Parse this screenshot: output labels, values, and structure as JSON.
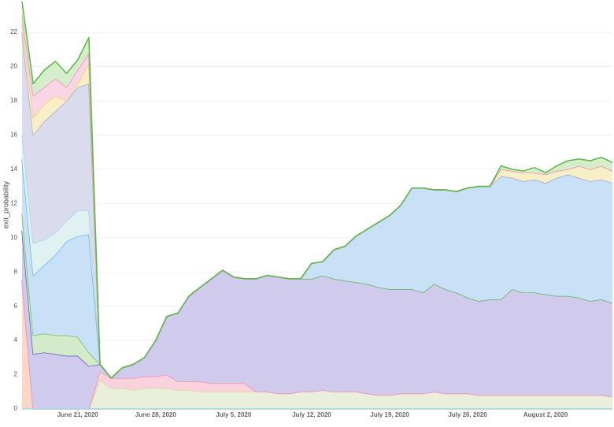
{
  "chart_data": {
    "type": "stacked_area",
    "y_label": "exit_probability",
    "x": [
      "2020-06-16",
      "2020-06-17",
      "2020-06-18",
      "2020-06-19",
      "2020-06-20",
      "2020-06-21",
      "2020-06-22",
      "2020-06-23",
      "2020-06-24",
      "2020-06-25",
      "2020-06-26",
      "2020-06-27",
      "2020-06-28",
      "2020-06-29",
      "2020-06-30",
      "2020-07-01",
      "2020-07-02",
      "2020-07-03",
      "2020-07-04",
      "2020-07-05",
      "2020-07-06",
      "2020-07-07",
      "2020-07-08",
      "2020-07-09",
      "2020-07-10",
      "2020-07-11",
      "2020-07-12",
      "2020-07-13",
      "2020-07-14",
      "2020-07-15",
      "2020-07-16",
      "2020-07-17",
      "2020-07-18",
      "2020-07-19",
      "2020-07-20",
      "2020-07-21",
      "2020-07-22",
      "2020-07-23",
      "2020-07-24",
      "2020-07-25",
      "2020-07-26",
      "2020-07-27",
      "2020-07-28",
      "2020-07-29",
      "2020-07-30",
      "2020-07-31",
      "2020-08-01",
      "2020-08-02",
      "2020-08-03",
      "2020-08-04",
      "2020-08-05",
      "2020-08-06",
      "2020-08-07",
      "2020-08-08"
    ],
    "xlim": [
      "2020-06-16",
      "2020-08-08"
    ],
    "xticks": [
      {
        "value": "2020-06-21",
        "label": "June 21, 2020"
      },
      {
        "value": "2020-06-28",
        "label": "June 28, 2020"
      },
      {
        "value": "2020-07-05",
        "label": "July 5, 2020"
      },
      {
        "value": "2020-07-12",
        "label": "July 12, 2020"
      },
      {
        "value": "2020-07-19",
        "label": "July 19, 2020"
      },
      {
        "value": "2020-07-26",
        "label": "July 26, 2020"
      },
      {
        "value": "2020-08-02",
        "label": "August 2, 2020"
      }
    ],
    "ylim": [
      0,
      23.8
    ],
    "yticks": [
      0,
      2,
      4,
      6,
      8,
      10,
      12,
      14,
      16,
      18,
      20,
      22
    ],
    "grid": true,
    "series": [
      {
        "color": "#f4a27a",
        "fill": "#fbd8c5",
        "values": [
          7.5,
          0,
          0,
          0,
          0,
          0,
          0,
          0,
          0,
          0,
          0,
          0,
          0,
          0,
          0,
          0,
          0,
          0,
          0,
          0,
          0,
          0,
          0,
          0,
          0,
          0,
          0,
          0,
          0,
          0,
          0,
          0,
          0,
          0,
          0,
          0,
          0,
          0,
          0,
          0,
          0,
          0,
          0,
          0,
          0,
          0,
          0,
          0,
          0,
          0,
          0,
          0,
          0,
          0
        ]
      },
      {
        "color": "#d4dc9a",
        "fill": "#e9efda",
        "values": [
          0,
          0,
          0,
          0,
          0,
          0,
          0,
          1.7,
          1.2,
          1.2,
          1.1,
          1.2,
          1.2,
          1.2,
          1.1,
          1.1,
          1.0,
          1.0,
          1.0,
          1.0,
          1.0,
          1.0,
          1.0,
          0.9,
          0.9,
          1.0,
          1.0,
          1.1,
          1.0,
          1.0,
          1.0,
          0.9,
          0.8,
          0.8,
          0.9,
          0.9,
          0.9,
          1.0,
          0.9,
          0.9,
          0.9,
          0.8,
          0.8,
          0.8,
          0.8,
          0.8,
          0.8,
          0.8,
          0.8,
          0.8,
          0.8,
          0.8,
          0.8,
          0.7
        ]
      },
      {
        "color": "#f28cb1",
        "fill": "#f9d2de",
        "values": [
          0,
          0,
          0,
          0,
          0,
          0,
          0,
          0.5,
          0.6,
          0.6,
          0.7,
          0.7,
          0.7,
          0.8,
          0.5,
          0.5,
          0.6,
          0.5,
          0.5,
          0.5,
          0.5,
          0,
          0,
          0,
          0,
          0,
          0,
          0,
          0,
          0,
          0,
          0,
          0,
          0,
          0,
          0,
          0,
          0,
          0,
          0,
          0,
          0,
          0,
          0,
          0,
          0,
          0,
          0,
          0,
          0,
          0,
          0,
          0,
          0
        ]
      },
      {
        "color": "#5b54c4",
        "fill": "#d0caed",
        "values": [
          2.9,
          3.2,
          3.3,
          3.2,
          3.1,
          3.1,
          2.5,
          0.4,
          0,
          0.6,
          0.8,
          1.1,
          2.1,
          3.4,
          4.0,
          5.0,
          5.5,
          6.1,
          6.6,
          6.2,
          6.1,
          6.6,
          6.8,
          6.8,
          6.7,
          6.6,
          6.6,
          6.7,
          6.6,
          6.5,
          6.4,
          6.4,
          6.3,
          6.2,
          6.1,
          6.1,
          5.9,
          6.3,
          6.1,
          5.9,
          5.6,
          5.5,
          5.6,
          5.6,
          6.2,
          6.0,
          6.0,
          5.9,
          5.8,
          5.8,
          5.7,
          5.5,
          5.6,
          5.5
        ]
      },
      {
        "color": "#6cc05a",
        "fill": "#d3ebcb",
        "values": [
          1.0,
          1.1,
          1.1,
          1.1,
          1.2,
          1.1,
          0.8,
          0,
          0,
          0,
          0,
          0,
          0,
          0,
          0,
          0,
          0,
          0,
          0,
          0,
          0,
          0,
          0,
          0,
          0,
          0,
          0,
          0,
          0,
          0,
          0,
          0,
          0,
          0,
          0,
          0,
          0,
          0,
          0,
          0,
          0,
          0,
          0,
          0,
          0,
          0,
          0,
          0,
          0,
          0,
          0,
          0,
          0,
          0
        ]
      },
      {
        "color": "#6fb2e8",
        "fill": "#c9e1f6",
        "values": [
          3.2,
          3.5,
          4.0,
          4.7,
          5.5,
          5.9,
          6.9,
          0,
          0,
          0,
          0,
          0,
          0,
          0,
          0,
          0,
          0,
          0,
          0,
          0,
          0,
          0,
          0,
          0,
          0,
          0,
          0.9,
          0.8,
          1.7,
          2.0,
          2.7,
          3.2,
          3.8,
          4.3,
          4.9,
          5.9,
          6.1,
          5.5,
          5.8,
          5.9,
          6.4,
          6.7,
          6.6,
          7.2,
          6.5,
          6.5,
          6.6,
          6.5,
          6.9,
          7.1,
          7.0,
          7.0,
          7.0,
          7.0
        ]
      },
      {
        "color": "#9fd6e8",
        "fill": "#dff1f0",
        "values": [
          1.4,
          1.9,
          1.5,
          1.3,
          1.2,
          1.5,
          1.4,
          0,
          0,
          0,
          0,
          0,
          0,
          0,
          0,
          0,
          0,
          0,
          0,
          0,
          0,
          0,
          0,
          0,
          0,
          0,
          0,
          0,
          0,
          0,
          0,
          0,
          0,
          0,
          0,
          0,
          0,
          0,
          0,
          0,
          0,
          0,
          0,
          0,
          0,
          0,
          0,
          0,
          0,
          0,
          0,
          0,
          0,
          0
        ]
      },
      {
        "color": "#a9a9d6",
        "fill": "#dadbec",
        "values": [
          6.0,
          6.3,
          6.9,
          7.1,
          7.0,
          7.2,
          7.4,
          0,
          0,
          0,
          0,
          0,
          0,
          0,
          0,
          0,
          0,
          0,
          0,
          0,
          0,
          0,
          0,
          0,
          0,
          0,
          0,
          0,
          0,
          0,
          0,
          0,
          0,
          0,
          0,
          0,
          0,
          0,
          0,
          0,
          0,
          0,
          0,
          0,
          0,
          0,
          0,
          0,
          0,
          0,
          0,
          0,
          0,
          0
        ]
      },
      {
        "color": "#ecd26a",
        "fill": "#f8efc6",
        "values": [
          0.5,
          1.0,
          1.0,
          0.9,
          0,
          0.2,
          1.2,
          0,
          0,
          0,
          0,
          0,
          0,
          0,
          0,
          0,
          0,
          0,
          0,
          0,
          0,
          0,
          0,
          0,
          0,
          0,
          0,
          0,
          0,
          0,
          0,
          0,
          0,
          0,
          0,
          0,
          0,
          0,
          0,
          0,
          0,
          0,
          0,
          0.4,
          0.4,
          0.5,
          0.4,
          0.5,
          0.4,
          0.3,
          0.7,
          0.7,
          0.8,
          0.7
        ]
      },
      {
        "color": "#f08bb8",
        "fill": "#f9d5e5",
        "values": [
          0.5,
          1.3,
          1.0,
          1.0,
          0.8,
          0.8,
          0.6,
          0,
          0,
          0,
          0,
          0,
          0,
          0,
          0,
          0,
          0,
          0,
          0,
          0,
          0,
          0,
          0,
          0,
          0,
          0,
          0,
          0,
          0,
          0,
          0,
          0,
          0,
          0,
          0,
          0,
          0,
          0,
          0,
          0,
          0,
          0,
          0,
          0,
          0,
          0,
          0,
          0,
          0,
          0,
          0,
          0,
          0,
          0
        ]
      },
      {
        "color": "#5ab848",
        "fill": "#d5edca",
        "values": [
          0.8,
          0.7,
          1.0,
          1.0,
          0.8,
          0.6,
          0.9,
          0,
          0,
          0,
          0,
          0,
          0,
          0,
          0,
          0,
          0,
          0,
          0,
          0,
          0,
          0,
          0,
          0,
          0,
          0,
          0,
          0,
          0,
          0,
          0,
          0,
          0,
          0,
          0,
          0,
          0,
          0,
          0,
          0,
          0,
          0,
          0,
          0.2,
          0.1,
          0.1,
          0.3,
          0.1,
          0.3,
          0.5,
          0.4,
          0.5,
          0.5,
          0.5
        ]
      }
    ]
  }
}
